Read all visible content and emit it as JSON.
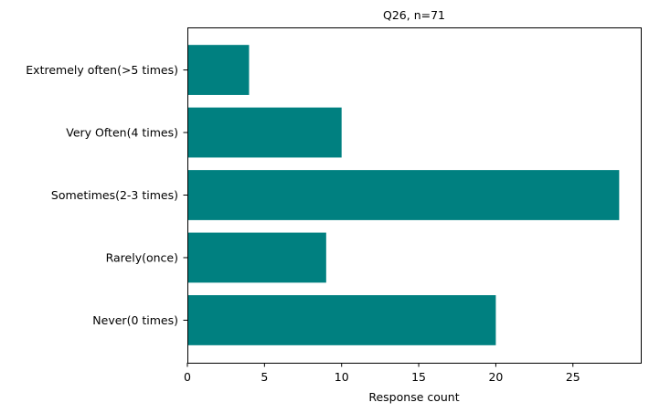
{
  "chart_data": {
    "type": "bar",
    "orientation": "horizontal",
    "title": "Q26, n=71",
    "xlabel": "Response count",
    "ylabel": "",
    "categories": [
      "Never(0 times)",
      "Rarely(once)",
      "Sometimes(2-3 times)",
      "Very Often(4 times)",
      "Extremely often(>5 times)"
    ],
    "values": [
      20,
      9,
      28,
      10,
      4
    ],
    "xlim": [
      0,
      29.4
    ],
    "xticks": [
      0,
      5,
      10,
      15,
      20,
      25
    ],
    "bar_color": "#008080",
    "grid": false,
    "legend": "none"
  }
}
